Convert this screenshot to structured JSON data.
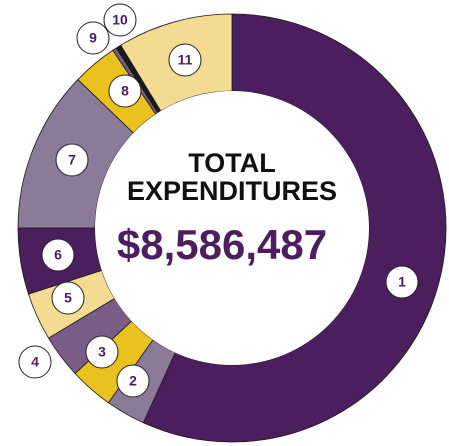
{
  "chart_data": {
    "type": "donut",
    "center_title": [
      "TOTAL",
      "EXPENDITURES"
    ],
    "center_value": "$8,586,487",
    "categories": [
      "1",
      "2",
      "3",
      "4",
      "5",
      "6",
      "7",
      "8",
      "9",
      "10",
      "11"
    ],
    "values": [
      56.8,
      3,
      3.3,
      3.3,
      3.6,
      5,
      12.2,
      3.4,
      0.3,
      0.4,
      8.7
    ],
    "colors": [
      "#4b1f5e",
      "#8c7a99",
      "#e9c21f",
      "#7a5d87",
      "#f3dc92",
      "#4b1f5e",
      "#8c7a99",
      "#e9c21f",
      "#7a5d87",
      "#1a1a1a",
      "#f3dc92"
    ]
  }
}
